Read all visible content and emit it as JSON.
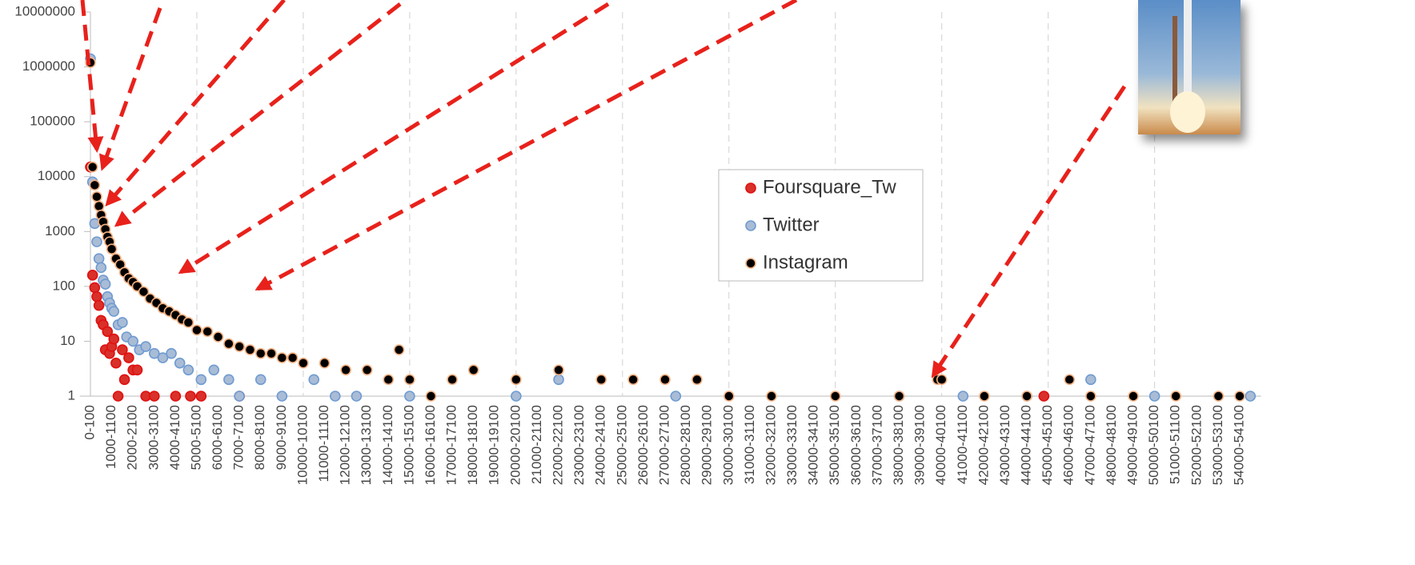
{
  "chart_data": {
    "type": "scatter",
    "log_y": true,
    "grid": true,
    "xlim": [
      -500,
      55000
    ],
    "ylim": [
      1,
      10000000
    ],
    "yticks": [
      1,
      10,
      100,
      1000,
      10000,
      100000,
      1000000,
      10000000
    ],
    "xticks": [
      {
        "value": 0,
        "label": "0-100"
      },
      {
        "value": 1000,
        "label": "1000-1100"
      },
      {
        "value": 2000,
        "label": "2000-2100"
      },
      {
        "value": 3000,
        "label": "3000-3100"
      },
      {
        "value": 4000,
        "label": "4000-4100"
      },
      {
        "value": 5000,
        "label": "5000-5100"
      },
      {
        "value": 6000,
        "label": "6000-6100"
      },
      {
        "value": 7000,
        "label": "7000-7100"
      },
      {
        "value": 8000,
        "label": "8000-8100"
      },
      {
        "value": 9000,
        "label": "9000-9100"
      },
      {
        "value": 10000,
        "label": "10000-10100"
      },
      {
        "value": 11000,
        "label": "11000-11100"
      },
      {
        "value": 12000,
        "label": "12000-12100"
      },
      {
        "value": 13000,
        "label": "13000-13100"
      },
      {
        "value": 14000,
        "label": "14000-14100"
      },
      {
        "value": 15000,
        "label": "15000-15100"
      },
      {
        "value": 16000,
        "label": "16000-16100"
      },
      {
        "value": 17000,
        "label": "17000-17100"
      },
      {
        "value": 18000,
        "label": "18000-18100"
      },
      {
        "value": 19000,
        "label": "19000-19100"
      },
      {
        "value": 20000,
        "label": "20000-20100"
      },
      {
        "value": 21000,
        "label": "21000-21100"
      },
      {
        "value": 22000,
        "label": "22000-22100"
      },
      {
        "value": 23000,
        "label": "23000-23100"
      },
      {
        "value": 24000,
        "label": "24000-24100"
      },
      {
        "value": 25000,
        "label": "25000-25100"
      },
      {
        "value": 26000,
        "label": "26000-26100"
      },
      {
        "value": 27000,
        "label": "27000-27100"
      },
      {
        "value": 28000,
        "label": "28000-28100"
      },
      {
        "value": 29000,
        "label": "29000-29100"
      },
      {
        "value": 30000,
        "label": "30000-30100"
      },
      {
        "value": 31000,
        "label": "31000-31100"
      },
      {
        "value": 32000,
        "label": "32000-32100"
      },
      {
        "value": 33000,
        "label": "33000-33100"
      },
      {
        "value": 34000,
        "label": "34000-34100"
      },
      {
        "value": 35000,
        "label": "35000-35100"
      },
      {
        "value": 36000,
        "label": "36000-36100"
      },
      {
        "value": 37000,
        "label": "37000-37100"
      },
      {
        "value": 38000,
        "label": "38000-38100"
      },
      {
        "value": 39000,
        "label": "39000-39100"
      },
      {
        "value": 40000,
        "label": "40000-40100"
      },
      {
        "value": 41000,
        "label": "41000-41100"
      },
      {
        "value": 42000,
        "label": "42000-42100"
      },
      {
        "value": 43000,
        "label": "43000-43100"
      },
      {
        "value": 44000,
        "label": "44000-44100"
      },
      {
        "value": 45000,
        "label": "45000-45100"
      },
      {
        "value": 46000,
        "label": "46000-46100"
      },
      {
        "value": 47000,
        "label": "47000-47100"
      },
      {
        "value": 48000,
        "label": "48000-48100"
      },
      {
        "value": 49000,
        "label": "49000-49100"
      },
      {
        "value": 50000,
        "label": "50000-50100"
      },
      {
        "value": 51000,
        "label": "51000-51100"
      },
      {
        "value": 52000,
        "label": "52000-52100"
      },
      {
        "value": 53000,
        "label": "53000-53100"
      },
      {
        "value": 54000,
        "label": "54000-54100"
      }
    ],
    "series": [
      {
        "name": "Foursquare_Tw",
        "color": "#d9302a",
        "stroke": "#e01010",
        "x": [
          0,
          100,
          200,
          300,
          400,
          500,
          600,
          700,
          800,
          900,
          1000,
          1100,
          1200,
          1300,
          1500,
          1600,
          1800,
          2000,
          2200,
          2600,
          3000,
          4000,
          4700,
          5200,
          7000,
          44800
        ],
        "values": [
          15000,
          160,
          95,
          65,
          45,
          24,
          20,
          7,
          15,
          6,
          8,
          11,
          4,
          1,
          7,
          2,
          5,
          3,
          3,
          1,
          1,
          1,
          1,
          1,
          1,
          1
        ]
      },
      {
        "name": "Twitter",
        "color": "#a9bcd6",
        "stroke": "#6f9bd1",
        "x": [
          0,
          100,
          200,
          300,
          400,
          500,
          600,
          700,
          800,
          900,
          1000,
          1100,
          1300,
          1500,
          1700,
          2000,
          2300,
          2600,
          3000,
          3400,
          3800,
          4200,
          4600,
          5200,
          5800,
          6500,
          7000,
          8000,
          9000,
          10500,
          11500,
          12500,
          15000,
          20000,
          22000,
          27500,
          38000,
          41000,
          44000,
          47000,
          50000,
          54500
        ],
        "values": [
          1400000,
          8000,
          1400,
          650,
          320,
          220,
          130,
          110,
          65,
          50,
          40,
          35,
          20,
          22,
          12,
          10,
          7,
          8,
          6,
          5,
          6,
          4,
          3,
          2,
          3,
          2,
          1,
          2,
          1,
          2,
          1,
          1,
          1,
          1,
          2,
          1,
          1,
          1,
          1,
          2,
          1,
          1
        ]
      },
      {
        "name": "Instagram",
        "color": "#000000",
        "stroke": "#f4b183",
        "x": [
          0,
          100,
          200,
          300,
          400,
          500,
          600,
          700,
          800,
          900,
          1000,
          1200,
          1400,
          1600,
          1800,
          2000,
          2200,
          2500,
          2800,
          3100,
          3400,
          3700,
          4000,
          4300,
          4600,
          5000,
          5500,
          6000,
          6500,
          7000,
          7500,
          8000,
          8500,
          9000,
          9500,
          10000,
          11000,
          12000,
          13000,
          14000,
          14500,
          15000,
          16000,
          17000,
          18000,
          20000,
          22000,
          24000,
          25500,
          27000,
          28500,
          30000,
          32000,
          35000,
          38000,
          39800,
          40000,
          42000,
          44000,
          46000,
          47000,
          49000,
          51000,
          53000,
          54000
        ],
        "values": [
          1200000,
          15000,
          7000,
          4300,
          2900,
          2000,
          1500,
          1100,
          800,
          650,
          480,
          320,
          250,
          180,
          140,
          120,
          100,
          80,
          60,
          50,
          40,
          35,
          30,
          25,
          22,
          16,
          15,
          12,
          9,
          8,
          7,
          6,
          6,
          5,
          5,
          4,
          4,
          3,
          3,
          2,
          7,
          2,
          1,
          2,
          3,
          2,
          3,
          2,
          2,
          2,
          2,
          1,
          1,
          1,
          1,
          2,
          2,
          1,
          1,
          2,
          1,
          1,
          1,
          1,
          1
        ]
      }
    ],
    "legend": "center-right"
  }
}
